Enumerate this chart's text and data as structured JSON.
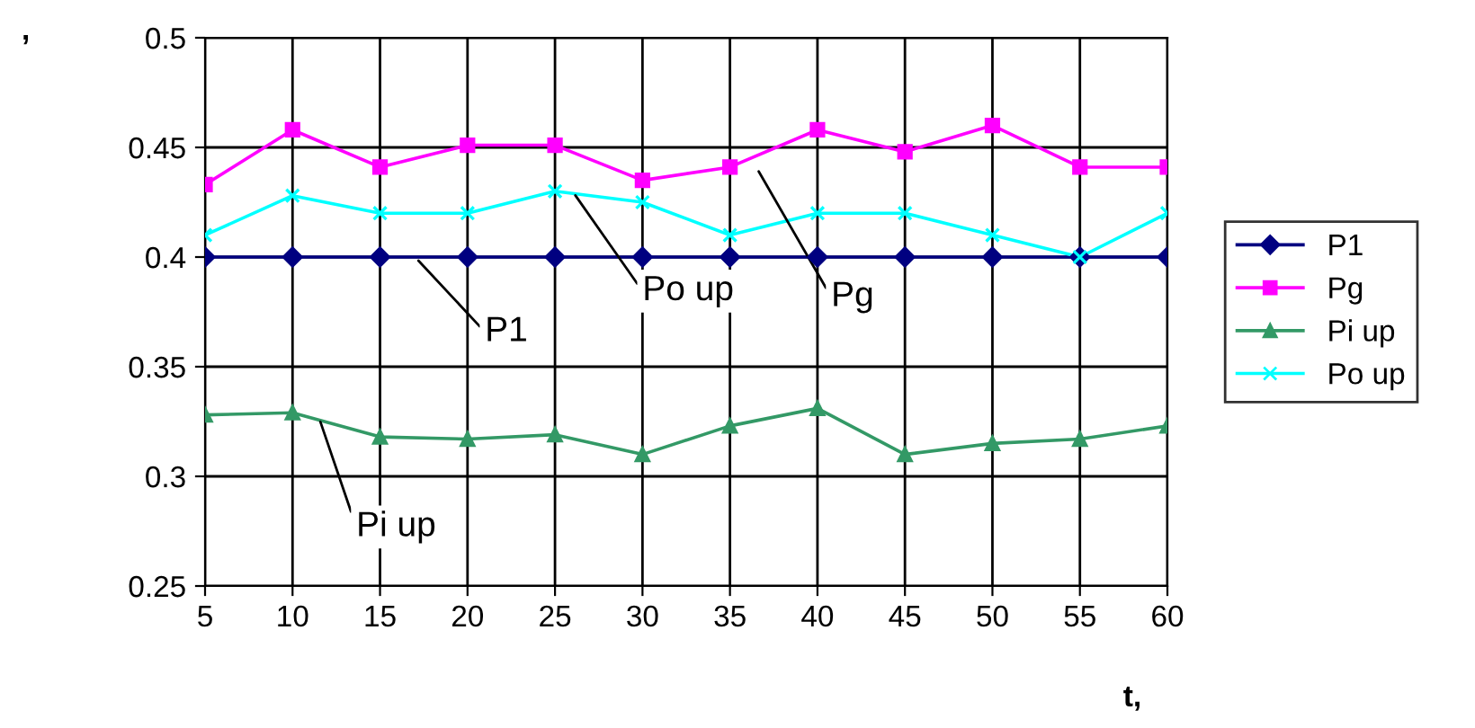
{
  "chart_data": {
    "type": "line",
    "ylabel": ",",
    "xlabel": "t,",
    "x": [
      5,
      10,
      15,
      20,
      25,
      30,
      35,
      40,
      45,
      50,
      55,
      60
    ],
    "xlim": [
      5,
      60
    ],
    "xticks": [
      5,
      10,
      15,
      20,
      25,
      30,
      35,
      40,
      45,
      50,
      55,
      60
    ],
    "ylim": [
      0.25,
      0.5
    ],
    "yticks": [
      0.25,
      0.3,
      0.35,
      0.4,
      0.45,
      0.5
    ],
    "grid": true,
    "legend": "right",
    "series": [
      {
        "name": "P1",
        "color": "#000080",
        "marker": "diamond",
        "values": [
          0.4,
          0.4,
          0.4,
          0.4,
          0.4,
          0.4,
          0.4,
          0.4,
          0.4,
          0.4,
          0.4,
          0.4
        ]
      },
      {
        "name": "Pg",
        "color": "#ff00ff",
        "marker": "square",
        "values": [
          0.433,
          0.458,
          0.441,
          0.451,
          0.451,
          0.435,
          0.441,
          0.458,
          0.448,
          0.46,
          0.441,
          0.441
        ]
      },
      {
        "name": "Pi up",
        "color": "#339966",
        "marker": "triangle",
        "values": [
          0.328,
          0.329,
          0.318,
          0.317,
          0.319,
          0.31,
          0.323,
          0.331,
          0.31,
          0.315,
          0.317,
          0.323
        ]
      },
      {
        "name": "Po up",
        "color": "#00ffff",
        "marker": "cross",
        "values": [
          0.41,
          0.428,
          0.42,
          0.42,
          0.43,
          0.425,
          0.41,
          0.42,
          0.42,
          0.41,
          0.4,
          0.42
        ]
      }
    ],
    "annotations": [
      {
        "text": "P1",
        "x": 17,
        "y": 0.4
      },
      {
        "text": "Po up",
        "x": 26,
        "y": 0.43
      },
      {
        "text": "Pg",
        "x": 36.5,
        "y": 0.441
      },
      {
        "text": "Pi up",
        "x": 11.5,
        "y": 0.327
      }
    ]
  }
}
